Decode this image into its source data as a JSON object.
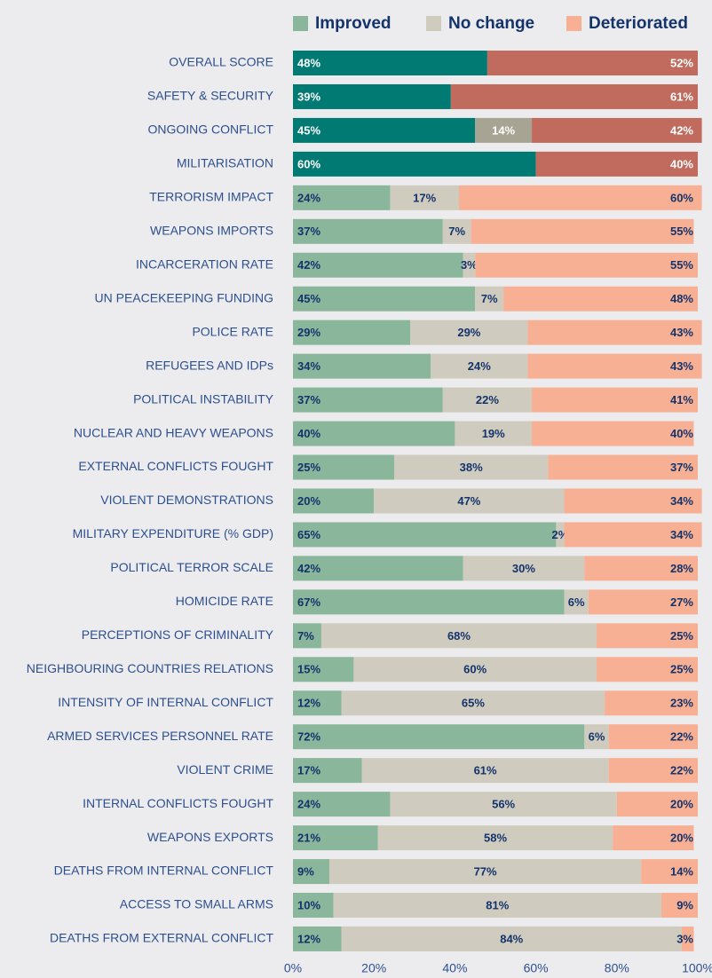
{
  "chart_data": {
    "type": "stacked_barh",
    "categories": [
      "OVERALL SCORE",
      "SAFETY & SECURITY",
      "ONGOING CONFLICT",
      "MILITARISATION",
      "TERRORISM IMPACT",
      "WEAPONS IMPORTS",
      "INCARCERATION RATE",
      "UN PEACEKEEPING FUNDING",
      "POLICE RATE",
      "REFUGEES AND IDPs",
      "POLITICAL INSTABILITY",
      "NUCLEAR AND HEAVY WEAPONS",
      "EXTERNAL CONFLICTS FOUGHT",
      "VIOLENT DEMONSTRATIONS",
      "MILITARY EXPENDITURE (% GDP)",
      "POLITICAL TERROR SCALE",
      "HOMICIDE RATE",
      "PERCEPTIONS OF CRIMINALITY",
      "NEIGHBOURING COUNTRIES RELATIONS",
      "INTENSITY OF INTERNAL CONFLICT",
      "ARMED SERVICES PERSONNEL RATE",
      "VIOLENT CRIME",
      "INTERNAL CONFLICTS FOUGHT",
      "WEAPONS EXPORTS",
      "DEATHS FROM INTERNAL CONFLICT",
      "ACCESS TO SMALL ARMS",
      "DEATHS FROM EXTERNAL CONFLICT"
    ],
    "series": [
      {
        "name": "Improved",
        "color": "#8ab69b",
        "colors": [
          "#007a73",
          "#007a73",
          "#007a73",
          "#007a73",
          "#8ab69b",
          "#8ab69b",
          "#8ab69b",
          "#8ab69b",
          "#8ab69b",
          "#8ab69b",
          "#8ab69b",
          "#8ab69b",
          "#8ab69b",
          "#8ab69b",
          "#8ab69b",
          "#8ab69b",
          "#8ab69b",
          "#8ab69b",
          "#8ab69b",
          "#8ab69b",
          "#8ab69b",
          "#8ab69b",
          "#8ab69b",
          "#8ab69b",
          "#8ab69b",
          "#8ab69b",
          "#8ab69b"
        ],
        "values": [
          48,
          39,
          45,
          60,
          24,
          37,
          42,
          45,
          29,
          34,
          37,
          40,
          25,
          20,
          65,
          42,
          67,
          7,
          15,
          12,
          72,
          17,
          24,
          21,
          9,
          10,
          12
        ],
        "value_labels": [
          "48%",
          "39%",
          "45%",
          "60%",
          "24%",
          "37%",
          "42%",
          "45%",
          "29%",
          "34%",
          "37%",
          "40%",
          "25%",
          "20%",
          "65%",
          "42%",
          "67%",
          "7%",
          "15%",
          "12%",
          "72%",
          "17%",
          "24%",
          "21%",
          "9%",
          "10%",
          "12%"
        ]
      },
      {
        "name": "No change",
        "color": "#cfccbf",
        "colors": [
          "#a8a493",
          "#a8a493",
          "#a8a493",
          "#a8a493",
          "#cfccbf",
          "#cfccbf",
          "#cfccbf",
          "#cfccbf",
          "#cfccbf",
          "#cfccbf",
          "#cfccbf",
          "#cfccbf",
          "#cfccbf",
          "#cfccbf",
          "#cfccbf",
          "#cfccbf",
          "#cfccbf",
          "#cfccbf",
          "#cfccbf",
          "#cfccbf",
          "#cfccbf",
          "#cfccbf",
          "#cfccbf",
          "#cfccbf",
          "#cfccbf",
          "#cfccbf",
          "#cfccbf"
        ],
        "values": [
          null,
          null,
          14,
          null,
          17,
          7,
          3,
          7,
          29,
          24,
          22,
          19,
          38,
          47,
          2,
          30,
          6,
          68,
          60,
          65,
          6,
          61,
          56,
          58,
          77,
          81,
          84
        ],
        "value_labels": [
          null,
          null,
          "14%",
          null,
          "17%",
          "7%",
          "3%",
          "7%",
          "29%",
          "24%",
          "22%",
          "19%",
          "38%",
          "47%",
          "2%",
          "30%",
          "6%",
          "68%",
          "60%",
          "65%",
          "6%",
          "61%",
          "56%",
          "58%",
          "77%",
          "81%",
          "84%"
        ]
      },
      {
        "name": "Deteriorated",
        "color": "#f8b095",
        "colors": [
          "#c06b5e",
          "#c06b5e",
          "#c06b5e",
          "#c06b5e",
          "#f8b095",
          "#f8b095",
          "#f8b095",
          "#f8b095",
          "#f8b095",
          "#f8b095",
          "#f8b095",
          "#f8b095",
          "#f8b095",
          "#f8b095",
          "#f8b095",
          "#f8b095",
          "#f8b095",
          "#f8b095",
          "#f8b095",
          "#f8b095",
          "#f8b095",
          "#f8b095",
          "#f8b095",
          "#f8b095",
          "#f8b095",
          "#f8b095",
          "#f8b095"
        ],
        "values": [
          52,
          61,
          42,
          40,
          60,
          55,
          55,
          48,
          43,
          43,
          41,
          40,
          37,
          34,
          34,
          28,
          27,
          25,
          25,
          23,
          22,
          22,
          20,
          20,
          14,
          9,
          3
        ],
        "value_labels": [
          "52%",
          "61%",
          "42%",
          "40%",
          "60%",
          "55%",
          "55%",
          "48%",
          "43%",
          "43%",
          "41%",
          "40%",
          "37%",
          "34%",
          "34%",
          "28%",
          "27%",
          "25%",
          "25%",
          "23%",
          "22%",
          "22%",
          "20%",
          "20%",
          "14%",
          "9%",
          "3%"
        ]
      }
    ],
    "xlim": [
      0,
      100
    ],
    "xticks": [
      {
        "value": 0,
        "label": "0%"
      },
      {
        "value": 20,
        "label": "20%"
      },
      {
        "value": 40,
        "label": "40%"
      },
      {
        "value": 60,
        "label": "60%"
      },
      {
        "value": 80,
        "label": "80%"
      },
      {
        "value": 100,
        "label": "100%"
      }
    ],
    "legend": "top"
  }
}
